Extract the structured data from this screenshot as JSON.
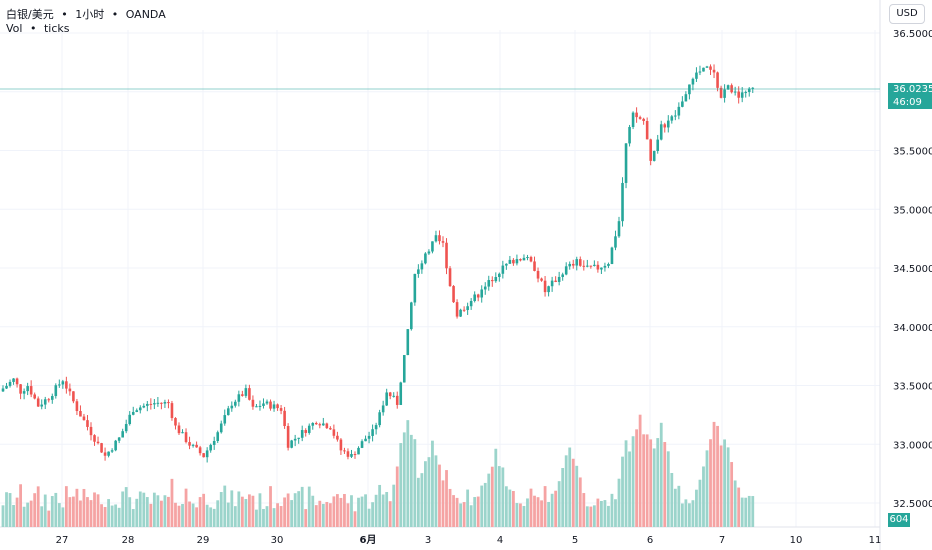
{
  "legend": {
    "symbol": "白银/美元",
    "interval": "1小时",
    "source": "OANDA",
    "separator": "•",
    "volume_label": "Vol",
    "volume_unit": "ticks"
  },
  "currency_label": "USD",
  "last_price": {
    "value": "36.02350",
    "countdown": "46:09"
  },
  "last_volume": "604",
  "colors": {
    "up": "#26a69a",
    "down": "#ef5350",
    "vol_up": "#9bd4cb",
    "vol_down": "#f5a3a3",
    "grid": "#f0f3fa",
    "price_line": "#26a69a"
  },
  "chart_data": {
    "type": "candlestick",
    "interval": "1h",
    "y_axis": {
      "ticks": [
        "36.50000",
        "36.00000",
        "35.50000",
        "35.00000",
        "34.50000",
        "34.00000",
        "33.50000",
        "33.00000",
        "32.50000"
      ],
      "range": [
        32.32,
        36.7
      ]
    },
    "x_axis": {
      "ticks": [
        "27",
        "28",
        "29",
        "30",
        "6月",
        "3",
        "4",
        "5",
        "6",
        "7",
        "10",
        "11"
      ]
    },
    "anchors": [
      {
        "t": 0,
        "p": 33.45
      },
      {
        "t": 4,
        "p": 33.55
      },
      {
        "t": 6,
        "p": 33.45
      },
      {
        "t": 8,
        "p": 33.5
      },
      {
        "t": 11,
        "p": 33.33
      },
      {
        "t": 14,
        "p": 33.4
      },
      {
        "t": 18,
        "p": 33.55
      },
      {
        "t": 22,
        "p": 33.3
      },
      {
        "t": 25,
        "p": 33.15
      },
      {
        "t": 30,
        "p": 32.9
      },
      {
        "t": 34,
        "p": 33.05
      },
      {
        "t": 38,
        "p": 33.3
      },
      {
        "t": 44,
        "p": 33.35
      },
      {
        "t": 48,
        "p": 33.35
      },
      {
        "t": 50,
        "p": 33.15
      },
      {
        "t": 54,
        "p": 33.0
      },
      {
        "t": 58,
        "p": 32.9
      },
      {
        "t": 62,
        "p": 33.1
      },
      {
        "t": 66,
        "p": 33.35
      },
      {
        "t": 70,
        "p": 33.45
      },
      {
        "t": 72,
        "p": 33.3
      },
      {
        "t": 75,
        "p": 33.35
      },
      {
        "t": 80,
        "p": 33.3
      },
      {
        "t": 82,
        "p": 33.0
      },
      {
        "t": 86,
        "p": 33.1
      },
      {
        "t": 90,
        "p": 33.2
      },
      {
        "t": 94,
        "p": 33.15
      },
      {
        "t": 97,
        "p": 32.95
      },
      {
        "t": 100,
        "p": 32.9
      },
      {
        "t": 104,
        "p": 33.05
      },
      {
        "t": 106,
        "p": 33.1
      },
      {
        "t": 108,
        "p": 33.25
      },
      {
        "t": 110,
        "p": 33.45
      },
      {
        "t": 113,
        "p": 33.35
      },
      {
        "t": 116,
        "p": 33.95
      },
      {
        "t": 118,
        "p": 34.45
      },
      {
        "t": 121,
        "p": 34.6
      },
      {
        "t": 124,
        "p": 34.75
      },
      {
        "t": 126,
        "p": 34.7
      },
      {
        "t": 128,
        "p": 34.35
      },
      {
        "t": 130,
        "p": 34.1
      },
      {
        "t": 133,
        "p": 34.2
      },
      {
        "t": 137,
        "p": 34.3
      },
      {
        "t": 141,
        "p": 34.45
      },
      {
        "t": 145,
        "p": 34.55
      },
      {
        "t": 149,
        "p": 34.6
      },
      {
        "t": 152,
        "p": 34.5
      },
      {
        "t": 155,
        "p": 34.3
      },
      {
        "t": 158,
        "p": 34.4
      },
      {
        "t": 161,
        "p": 34.5
      },
      {
        "t": 164,
        "p": 34.55
      },
      {
        "t": 167,
        "p": 34.5
      },
      {
        "t": 170,
        "p": 34.5
      },
      {
        "t": 173,
        "p": 34.55
      },
      {
        "t": 176,
        "p": 34.9
      },
      {
        "t": 178,
        "p": 35.55
      },
      {
        "t": 180,
        "p": 35.8
      },
      {
        "t": 183,
        "p": 35.75
      },
      {
        "t": 185,
        "p": 35.4
      },
      {
        "t": 188,
        "p": 35.7
      },
      {
        "t": 192,
        "p": 35.8
      },
      {
        "t": 195,
        "p": 36.0
      },
      {
        "t": 198,
        "p": 36.15
      },
      {
        "t": 201,
        "p": 36.2
      },
      {
        "t": 203,
        "p": 36.15
      },
      {
        "t": 205,
        "p": 35.95
      },
      {
        "t": 207,
        "p": 36.05
      },
      {
        "t": 210,
        "p": 35.95
      },
      {
        "t": 213,
        "p": 36.02
      }
    ],
    "volume_peaks": [
      {
        "t": 115,
        "v": 0.45
      },
      {
        "t": 122,
        "v": 0.4
      },
      {
        "t": 140,
        "v": 0.38
      },
      {
        "t": 161,
        "v": 0.4
      },
      {
        "t": 181,
        "v": 0.6
      },
      {
        "t": 187,
        "v": 0.5
      },
      {
        "t": 202,
        "v": 0.55
      },
      {
        "t": 205,
        "v": 0.45
      }
    ]
  }
}
